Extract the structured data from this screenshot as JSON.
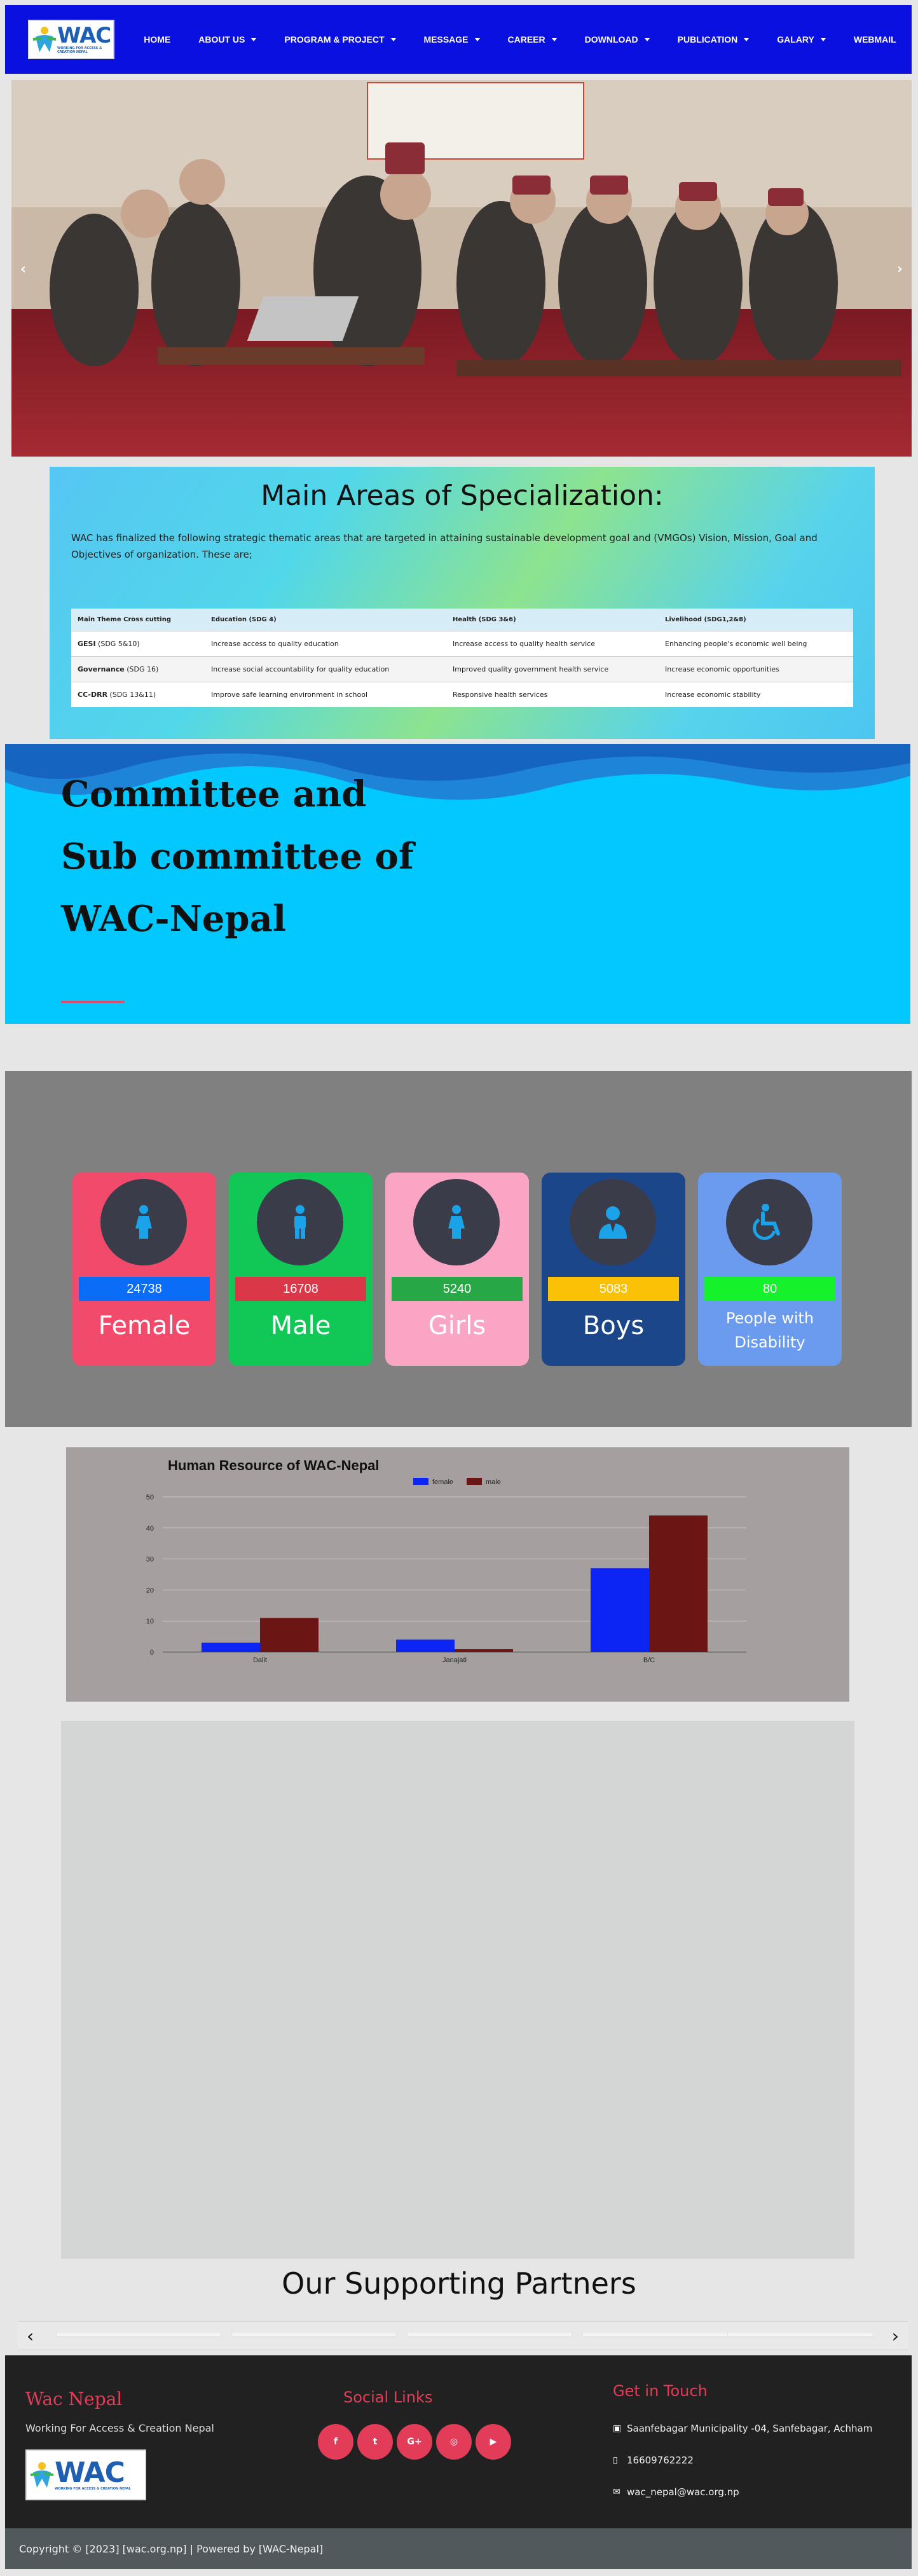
{
  "nav": {
    "logo_text": "WAC",
    "logo_tagline": "WORKING FOR ACCESS & CREATION NEPAL",
    "items": [
      {
        "label": "HOME",
        "dropdown": false
      },
      {
        "label": "ABOUT US",
        "dropdown": true
      },
      {
        "label": "PROGRAM & PROJECT",
        "dropdown": true
      },
      {
        "label": "MESSAGE",
        "dropdown": true
      },
      {
        "label": "CAREER",
        "dropdown": true
      },
      {
        "label": "DOWNLOAD",
        "dropdown": true
      },
      {
        "label": "PUBLICATION",
        "dropdown": true
      },
      {
        "label": "GALARY",
        "dropdown": true
      },
      {
        "label": "WEBMAIL",
        "dropdown": false
      }
    ]
  },
  "hero": {
    "prev": "‹",
    "next": "›"
  },
  "specialization": {
    "title": "Main Areas of Specialization:",
    "intro": "WAC has finalized the following strategic thematic areas that are targeted in attaining sustainable development goal and (VMGOs) Vision, Mission, Goal and Objectives of organization. These are;",
    "headers": [
      "Main Theme Cross cutting",
      "Education (SDG 4)",
      "Health (SDG 3&6)",
      "Livelihood (SDG1,2&8)"
    ],
    "rows": [
      {
        "theme": "GESI",
        "sdg": " (SDG 5&10)",
        "education": "Increase access to quality education",
        "health": "Increase access to quality health service",
        "livelihood": "Enhancing people's economic well being"
      },
      {
        "theme": "Governance",
        "sdg": " (SDG 16)",
        "education": "Increase social accountability for quality education",
        "health": "Improved quality government health service",
        "livelihood": "Increase economic opportunities"
      },
      {
        "theme": "CC-DRR",
        "sdg": " (SDG 13&11)",
        "education": "Improve safe learning environment in school",
        "health": "Responsive health services",
        "livelihood": "Increase economic stability"
      }
    ]
  },
  "committee": {
    "line1": "Committee and",
    "line2": "Sub committee of",
    "line3": "WAC-Nepal"
  },
  "stats": [
    {
      "label": "Female",
      "value": "24738",
      "icon": "female-icon",
      "card_color": "#f14a6b",
      "badge_color": "#0b6cf5"
    },
    {
      "label": "Male",
      "value": "16708",
      "icon": "male-icon",
      "card_color": "#11c756",
      "badge_color": "#da3848"
    },
    {
      "label": "Girls",
      "value": "5240",
      "icon": "girl-icon",
      "card_color": "#fba5c4",
      "badge_color": "#27a745"
    },
    {
      "label": "Boys",
      "value": "5083",
      "icon": "boy-icon",
      "card_color": "#1b478a",
      "badge_color": "#fbc107"
    },
    {
      "label": "People with Disability",
      "label_line1": "People with",
      "label_line2": "Disability",
      "value": "80",
      "icon": "wheelchair-icon",
      "card_color": "#6a9bee",
      "badge_color": "#15f12b"
    }
  ],
  "chart_data": {
    "type": "bar",
    "title": "Human Resource of WAC-Nepal",
    "categories": [
      "Dalit",
      "Janajati",
      "B/C"
    ],
    "series": [
      {
        "name": "female",
        "values": [
          3,
          4,
          27
        ],
        "color": "#0c25f5"
      },
      {
        "name": "male",
        "values": [
          11,
          1,
          44
        ],
        "color": "#6b1515"
      }
    ],
    "ylim": [
      0,
      50
    ],
    "yticks": [
      0,
      10,
      20,
      30,
      40,
      50
    ],
    "legend": "top-center",
    "grid": true
  },
  "partners": {
    "title": "Our Supporting Partners",
    "prev": "‹",
    "next": "›"
  },
  "footer": {
    "brand": "Wac Nepal",
    "brand_sub": "Working For Access & Creation Nepal",
    "social_title": "Social Links",
    "social": [
      "facebook-icon",
      "twitter-icon",
      "google-plus-icon",
      "instagram-icon",
      "youtube-icon"
    ],
    "social_glyphs": [
      "f",
      "t",
      "G+",
      "◎",
      "▶"
    ],
    "contact_title": "Get in Touch",
    "address": "Saanfebagar Municipality -04, Sanfebagar, Achham",
    "phone": "16609762222",
    "email": "wac_nepal@wac.org.np",
    "copyright": "Copyright © [2023] [wac.org.np] | Powered by [WAC-Nepal]"
  }
}
